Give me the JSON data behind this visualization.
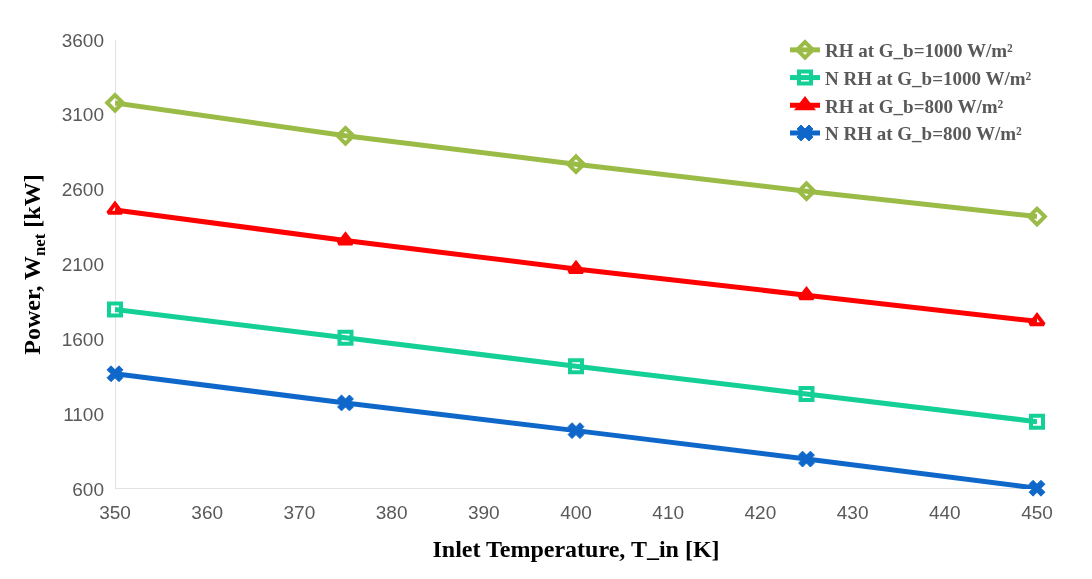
{
  "chart_data": {
    "type": "line",
    "xlabel": "Inlet Temperature, T_in [K]",
    "ylabel": "Power, W$_{net}$ [kW]",
    "x": [
      350,
      375,
      400,
      425,
      450
    ],
    "series": [
      {
        "name": "RH at G_b=1000 W/m²",
        "color": "#9bbb47",
        "marker": "diamond",
        "values": [
          3180,
          2960,
          2770,
          2590,
          2420
        ]
      },
      {
        "name": "N RH at G_b=1000 W/m²",
        "color": "#14cf96",
        "marker": "square",
        "values": [
          1800,
          1610,
          1420,
          1235,
          1050
        ]
      },
      {
        "name": "RH at G_b=800 W/m²",
        "color": "#ff0000",
        "marker": "triangle",
        "values": [
          2465,
          2260,
          2070,
          1895,
          1720
        ]
      },
      {
        "name": "N RH at G_b=800 W/m²",
        "color": "#0f68c9",
        "marker": "cross",
        "values": [
          1370,
          1175,
          990,
          800,
          605
        ]
      }
    ],
    "xlim": [
      350,
      450
    ],
    "xticks": [
      350,
      360,
      370,
      380,
      390,
      400,
      410,
      420,
      430,
      440,
      450
    ],
    "ylim": [
      600,
      3600
    ],
    "yticks": [
      600,
      1100,
      1600,
      2100,
      2600,
      3100,
      3600
    ],
    "grid": false,
    "legend": "top right",
    "line_style": "solid"
  }
}
